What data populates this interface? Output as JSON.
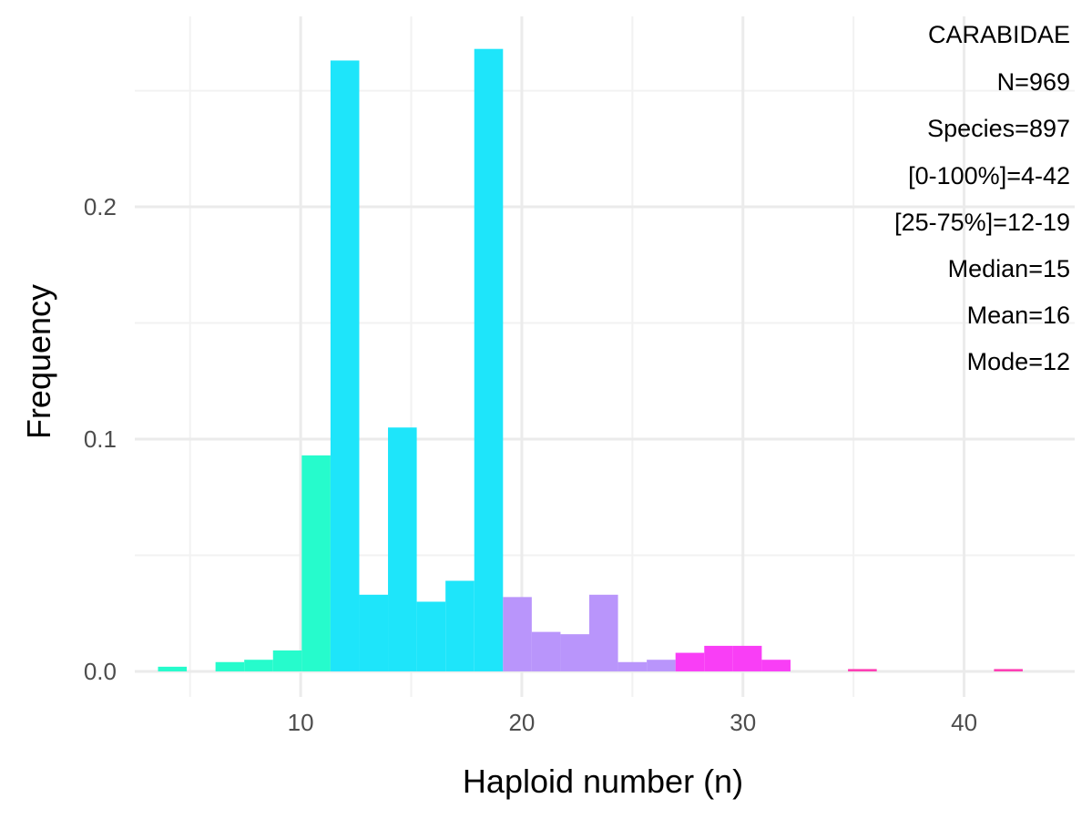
{
  "chart_data": {
    "type": "bar",
    "xlabel": "Haploid number (n)",
    "ylabel": "Frequency",
    "x_ticks": [
      10,
      20,
      30,
      40
    ],
    "x_tick_labels": [
      "10",
      "20",
      "30",
      "40"
    ],
    "y_ticks": [
      0.0,
      0.1,
      0.2
    ],
    "y_tick_labels": [
      "0.0",
      "0.1",
      "0.2"
    ],
    "xlim": [
      2.5,
      45
    ],
    "ylim": [
      -0.011,
      0.282
    ],
    "grid": true,
    "bin_width": 1.3,
    "bins": [
      {
        "center": 4.2,
        "value": 0.002,
        "color": "#26fbcc"
      },
      {
        "center": 6.8,
        "value": 0.004,
        "color": "#26fbcc"
      },
      {
        "center": 8.1,
        "value": 0.005,
        "color": "#26fbcc"
      },
      {
        "center": 9.4,
        "value": 0.009,
        "color": "#26fbcc"
      },
      {
        "center": 10.7,
        "value": 0.093,
        "color": "#26fbcc"
      },
      {
        "center": 12.0,
        "value": 0.263,
        "color": "#1ee5fa"
      },
      {
        "center": 13.3,
        "value": 0.033,
        "color": "#1ee5fa"
      },
      {
        "center": 14.6,
        "value": 0.105,
        "color": "#1ee5fa"
      },
      {
        "center": 15.9,
        "value": 0.03,
        "color": "#1ee5fa"
      },
      {
        "center": 17.2,
        "value": 0.039,
        "color": "#1ee5fa"
      },
      {
        "center": 18.5,
        "value": 0.268,
        "color": "#1ee5fa"
      },
      {
        "center": 19.8,
        "value": 0.032,
        "color": "#b995fb"
      },
      {
        "center": 21.1,
        "value": 0.017,
        "color": "#b995fb"
      },
      {
        "center": 22.4,
        "value": 0.016,
        "color": "#b995fb"
      },
      {
        "center": 23.7,
        "value": 0.033,
        "color": "#b995fb"
      },
      {
        "center": 25.0,
        "value": 0.004,
        "color": "#b995fb"
      },
      {
        "center": 26.3,
        "value": 0.005,
        "color": "#b995fb"
      },
      {
        "center": 27.6,
        "value": 0.008,
        "color": "#f93ef6"
      },
      {
        "center": 28.9,
        "value": 0.011,
        "color": "#f93ef6"
      },
      {
        "center": 30.2,
        "value": 0.011,
        "color": "#f93ef6"
      },
      {
        "center": 31.5,
        "value": 0.005,
        "color": "#f93ef6"
      },
      {
        "center": 35.4,
        "value": 0.001,
        "color": "#fd3cb4"
      },
      {
        "center": 42.0,
        "value": 0.001,
        "color": "#fd3cb4"
      }
    ],
    "annotations": [
      "CARABIDAE",
      "N=969",
      "Species=897",
      "[0-100%]=4-42",
      "[25-75%]=12-19",
      "Median=15",
      "Mean=16",
      "Mode=12"
    ]
  },
  "colors": {
    "background": "#ffffff",
    "grid_major": "#ebebeb",
    "grid_minor": "#f2f2f2"
  }
}
